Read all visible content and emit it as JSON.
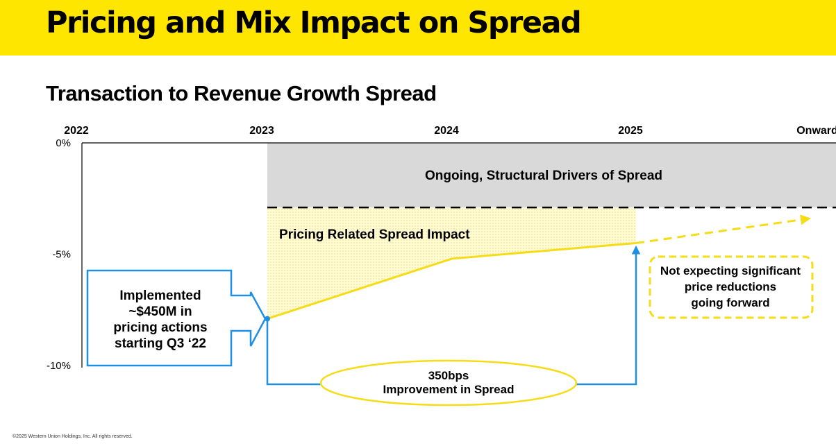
{
  "header": {
    "title": "Pricing and Mix Impact on Spread"
  },
  "chart_data": {
    "type": "line",
    "title": "Transaction to Revenue Growth Spread",
    "x": [
      "2022",
      "2023",
      "2024",
      "2025",
      "Onward"
    ],
    "yticks": [
      "0%",
      "-5%",
      "-10%"
    ],
    "ylim": [
      -10,
      0
    ],
    "structural_band": {
      "label": "Ongoing, Structural Drivers of Spread",
      "from_year": "2023",
      "to_year": "Onward",
      "top": 0,
      "bottom": -2.9
    },
    "series": [
      {
        "name": "Pricing Related Spread Impact",
        "points": [
          {
            "x": "2023",
            "y": -7.9
          },
          {
            "x": "2024",
            "y": -5.2
          },
          {
            "x": "2025",
            "y": -4.5
          }
        ],
        "projection": [
          {
            "x": "2025",
            "y": -4.5
          },
          {
            "x": "Onward",
            "y": -3.4
          }
        ]
      }
    ],
    "annotations": {
      "left_callout": [
        "Implemented",
        "~$450M in",
        "pricing actions",
        "starting Q3 ‘22"
      ],
      "improvement": [
        "350bps",
        "Improvement in Spread"
      ],
      "right_callout": [
        "Not expecting significant",
        "price reductions",
        "going forward"
      ]
    }
  },
  "footer": {
    "copyright": "©2025 Western Union Holdings, Inc.  All rights reserved."
  },
  "colors": {
    "yellow": "#FFE600",
    "line_yellow": "#F5DC17",
    "blue": "#1E8FE1",
    "gray": "#D9D9D9",
    "text": "#000000"
  }
}
